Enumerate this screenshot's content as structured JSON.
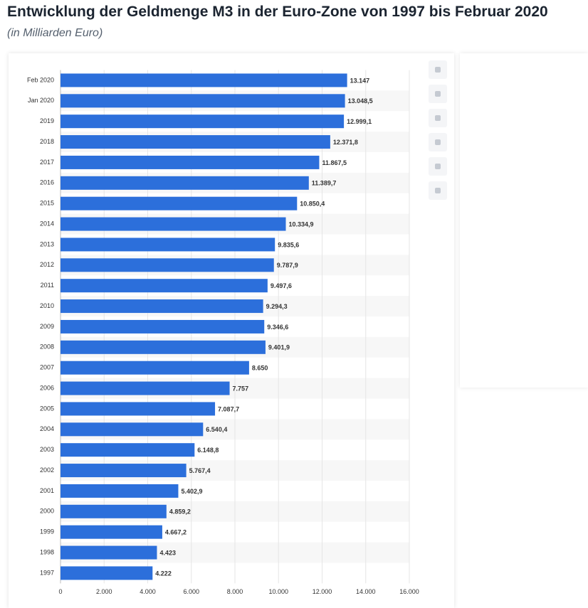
{
  "chart_data": {
    "type": "bar",
    "orientation": "horizontal",
    "title": "Entwicklung der Geldmenge M3 in der Euro-Zone von 1997 bis Februar 2020",
    "subtitle": "(in Milliarden Euro)",
    "categories": [
      "Feb 2020",
      "Jan 2020",
      "2019",
      "2018",
      "2017",
      "2016",
      "2015",
      "2014",
      "2013",
      "2012",
      "2011",
      "2010",
      "2009",
      "2008",
      "2007",
      "2006",
      "2005",
      "2004",
      "2003",
      "2002",
      "2001",
      "2000",
      "1999",
      "1998",
      "1997"
    ],
    "values": [
      13147,
      13048.5,
      12999.1,
      12371.8,
      11867.5,
      11389.7,
      10850.4,
      10334.9,
      9835.6,
      9787.9,
      9497.6,
      9294.3,
      9346.6,
      9401.9,
      8650,
      7757,
      7087.7,
      6540.4,
      6148.8,
      5767.4,
      5402.9,
      4859.2,
      4667.2,
      4423,
      4222
    ],
    "value_labels": [
      "13.147",
      "13.048,5",
      "12.999,1",
      "12.371,8",
      "11.867,5",
      "11.389,7",
      "10.850,4",
      "10.334,9",
      "9.835,6",
      "9.787,9",
      "9.497,6",
      "9.294,3",
      "9.346,6",
      "9.401,9",
      "8.650",
      "7.757",
      "7.087,7",
      "6.540,4",
      "6.148,8",
      "5.767,4",
      "5.402,9",
      "4.859,2",
      "4.667,2",
      "4.423",
      "4.222"
    ],
    "color": "#2c6fdb",
    "xlim": [
      0,
      16000
    ],
    "xticks": [
      0,
      {
        "value": 2000,
        "label": "2.000"
      },
      {
        "value": 4000,
        "label": "4.000"
      },
      {
        "value": 6000,
        "label": "6.000"
      },
      {
        "value": 8000,
        "label": "8.000"
      },
      {
        "value": 10000,
        "label": "10.000"
      },
      {
        "value": 12000,
        "label": "12.000"
      },
      {
        "value": 14000,
        "label": "14.000"
      },
      {
        "value": 16000,
        "label": "16.000"
      }
    ],
    "grid": true
  }
}
